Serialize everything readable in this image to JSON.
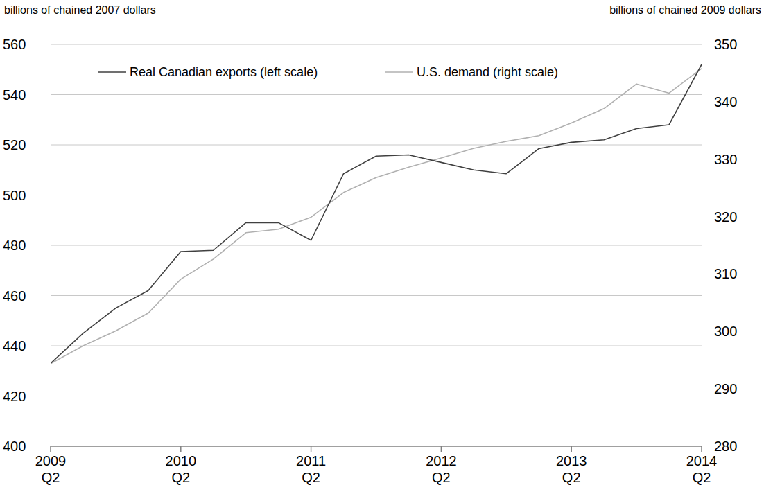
{
  "chart_data": {
    "type": "line",
    "y_label": "billions of chained 2007 dollars",
    "y2_label": "billions of chained 2009 dollars",
    "categories": [
      "2009 Q2",
      null,
      null,
      null,
      "2010 Q2",
      null,
      null,
      null,
      "2011 Q2",
      null,
      null,
      null,
      "2012 Q2",
      null,
      null,
      null,
      "2013 Q2",
      null,
      null,
      null,
      "2014 Q2"
    ],
    "series": [
      {
        "name": "Real Canadian exports (left scale)",
        "color": "#404040",
        "axis": "y",
        "values": [
          433,
          445,
          455,
          462,
          477.5,
          478,
          489,
          489,
          482,
          508.5,
          515.5,
          516,
          513,
          510,
          508.5,
          518.5,
          521,
          522,
          526.5,
          528,
          552
        ]
      },
      {
        "name": "U.S. demand (right scale)",
        "color": "#b0b0b0",
        "axis": "y2",
        "values": [
          294.4,
          297.5,
          300.1,
          303.2,
          309.1,
          312.6,
          317.2,
          317.8,
          319.9,
          324.2,
          326.8,
          328.6,
          330.2,
          331.9,
          333.1,
          334.1,
          336.3,
          338.8,
          343.1,
          341.5,
          345.8
        ]
      }
    ],
    "ylim": [
      400,
      560
    ],
    "yticks": [
      400,
      420,
      440,
      460,
      480,
      500,
      520,
      540,
      560
    ],
    "y2lim": [
      280,
      350
    ],
    "y2ticks": [
      280,
      290,
      300,
      310,
      320,
      330,
      340,
      350
    ],
    "grid": true,
    "legend": "top"
  }
}
